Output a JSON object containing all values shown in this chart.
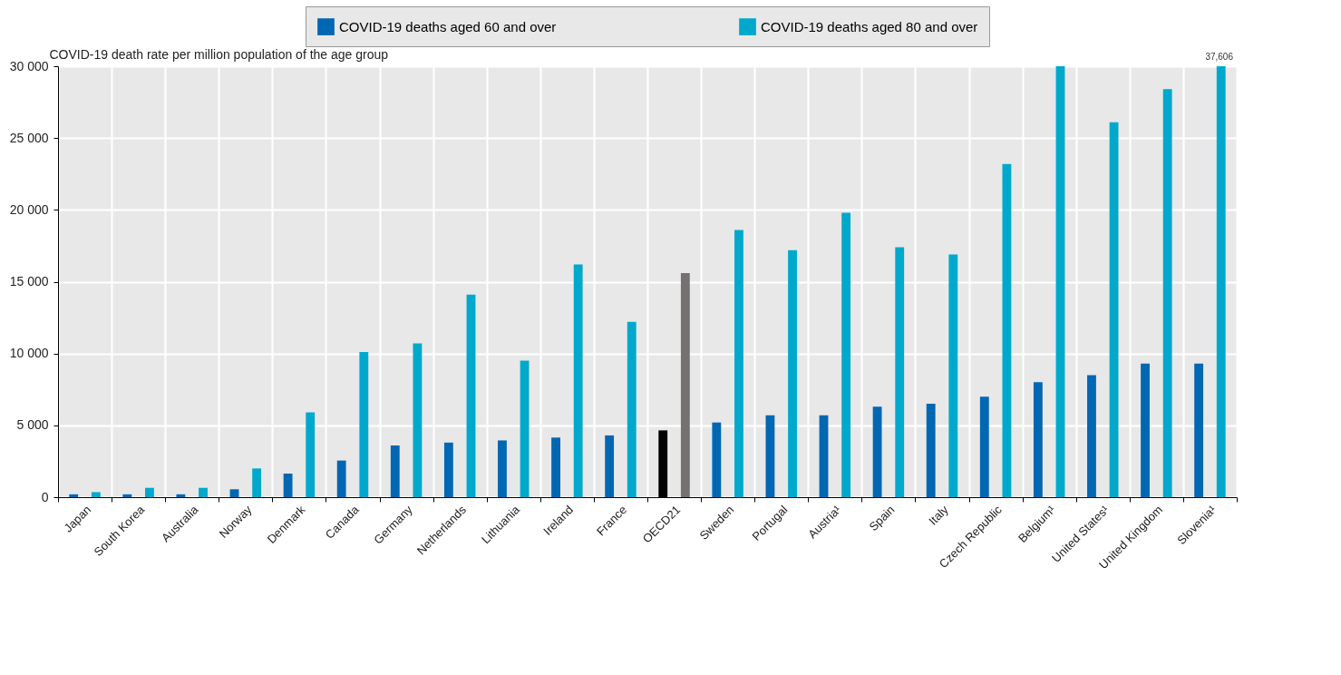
{
  "chart_data": {
    "type": "bar",
    "ylabel": "COVID-19 death rate per million population of the age group",
    "categories": [
      "Japan",
      "South Korea",
      "Australia",
      "Norway",
      "Denmark",
      "Canada",
      "Germany",
      "Netherlands",
      "Lithuania",
      "Ireland",
      "France",
      "OECD21",
      "Sweden",
      "Portugal",
      "Austria¹",
      "Spain",
      "Italy",
      "Czech Republic",
      "Belgium¹",
      "United States¹",
      "United Kingdom",
      "Slovenia¹"
    ],
    "series": [
      {
        "name": "COVID-19 deaths aged 60 and over",
        "color": "#0067b3",
        "colors": [
          "#0067b3",
          "#0067b3",
          "#0067b3",
          "#0067b3",
          "#0067b3",
          "#0067b3",
          "#0067b3",
          "#0067b3",
          "#0067b3",
          "#0067b3",
          "#0067b3",
          "#000000",
          "#0067b3",
          "#0067b3",
          "#0067b3",
          "#0067b3",
          "#0067b3",
          "#0067b3",
          "#0067b3",
          "#0067b3",
          "#0067b3",
          "#0067b3"
        ],
        "values": [
          200,
          200,
          200,
          550,
          1650,
          2550,
          3600,
          3800,
          3950,
          4150,
          4300,
          4650,
          5200,
          5700,
          5700,
          6300,
          6500,
          7000,
          8000,
          8500,
          9300,
          9300
        ]
      },
      {
        "name": "COVID-19 deaths aged 80 and over",
        "color": "#00a9cc",
        "colors": [
          "#00a9cc",
          "#00a9cc",
          "#00a9cc",
          "#00a9cc",
          "#00a9cc",
          "#00a9cc",
          "#00a9cc",
          "#00a9cc",
          "#00a9cc",
          "#00a9cc",
          "#00a9cc",
          "#767171",
          "#00a9cc",
          "#00a9cc",
          "#00a9cc",
          "#00a9cc",
          "#00a9cc",
          "#00a9cc",
          "#00a9cc",
          "#00a9cc",
          "#00a9cc",
          "#00a9cc"
        ],
        "values": [
          350,
          650,
          650,
          2000,
          5900,
          10100,
          10700,
          14100,
          9500,
          16200,
          12200,
          15600,
          18600,
          17200,
          19800,
          17400,
          16900,
          23200,
          30000,
          26100,
          28400,
          30000
        ]
      }
    ],
    "ylim": [
      0,
      30000
    ],
    "yticks": [
      0,
      {
        "value": 5000,
        "label": "5 000"
      },
      {
        "value": 10000,
        "label": "10 000"
      },
      {
        "value": 15000,
        "label": "15 000"
      },
      {
        "value": 20000,
        "label": "20 000"
      },
      {
        "value": 25000,
        "label": "25 000"
      },
      {
        "value": 30000,
        "label": "30 000"
      }
    ],
    "annotations": [
      "37,606"
    ],
    "grid": true,
    "legend": "top"
  }
}
